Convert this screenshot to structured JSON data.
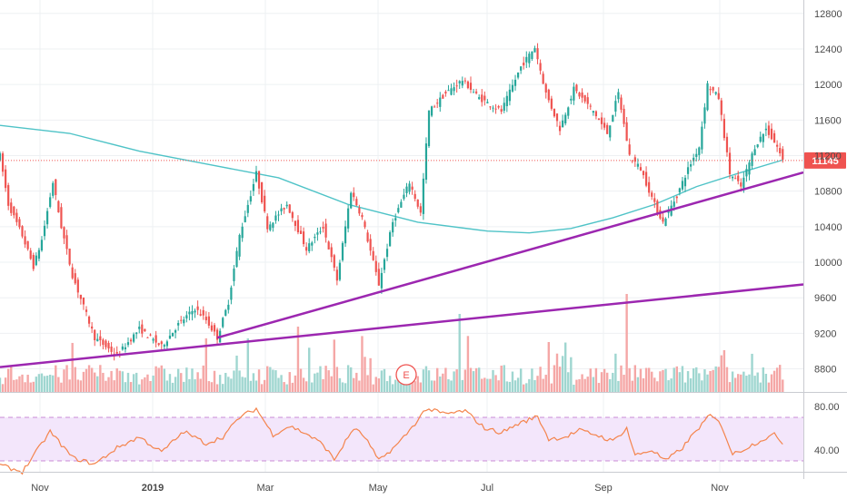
{
  "chart_data": [
    {
      "type": "candlestick",
      "x_ticks": [
        "Nov",
        "2019",
        "Mar",
        "May",
        "Jul",
        "Sep",
        "Nov"
      ],
      "y_ticks": [
        8800,
        9200,
        9600,
        10000,
        10400,
        10800,
        11200,
        11600,
        12000,
        12400,
        12800
      ],
      "ylim": [
        8540,
        12900
      ],
      "last_price": "11145",
      "candle_count": 282,
      "anchors": [
        {
          "i": 0,
          "close": 11200
        },
        {
          "i": 3,
          "close": 10650
        },
        {
          "i": 8,
          "close": 10300
        },
        {
          "i": 12,
          "close": 9950
        },
        {
          "i": 15,
          "close": 10250
        },
        {
          "i": 19,
          "close": 10900
        },
        {
          "i": 22,
          "close": 10400
        },
        {
          "i": 26,
          "close": 9850
        },
        {
          "i": 34,
          "close": 9150
        },
        {
          "i": 42,
          "close": 8950
        },
        {
          "i": 50,
          "close": 9250
        },
        {
          "i": 58,
          "close": 9050
        },
        {
          "i": 64,
          "close": 9300
        },
        {
          "i": 70,
          "close": 9480
        },
        {
          "i": 74,
          "close": 9350
        },
        {
          "i": 78,
          "close": 9150
        },
        {
          "i": 82,
          "close": 9550
        },
        {
          "i": 86,
          "close": 10300
        },
        {
          "i": 92,
          "close": 11000
        },
        {
          "i": 96,
          "close": 10400
        },
        {
          "i": 103,
          "close": 10650
        },
        {
          "i": 110,
          "close": 10150
        },
        {
          "i": 116,
          "close": 10400
        },
        {
          "i": 121,
          "close": 9800
        },
        {
          "i": 126,
          "close": 10800
        },
        {
          "i": 130,
          "close": 10500
        },
        {
          "i": 136,
          "close": 9750
        },
        {
          "i": 141,
          "close": 10450
        },
        {
          "i": 147,
          "close": 10900
        },
        {
          "i": 151,
          "close": 10550
        },
        {
          "i": 154,
          "close": 11700
        },
        {
          "i": 160,
          "close": 11900
        },
        {
          "i": 166,
          "close": 12050
        },
        {
          "i": 172,
          "close": 11850
        },
        {
          "i": 180,
          "close": 11700
        },
        {
          "i": 187,
          "close": 12200
        },
        {
          "i": 192,
          "close": 12420
        },
        {
          "i": 196,
          "close": 11900
        },
        {
          "i": 201,
          "close": 11500
        },
        {
          "i": 206,
          "close": 11950
        },
        {
          "i": 213,
          "close": 11700
        },
        {
          "i": 218,
          "close": 11450
        },
        {
          "i": 222,
          "close": 11900
        },
        {
          "i": 226,
          "close": 11200
        },
        {
          "i": 230,
          "close": 11050
        },
        {
          "i": 235,
          "close": 10650
        },
        {
          "i": 238,
          "close": 10450
        },
        {
          "i": 243,
          "close": 10750
        },
        {
          "i": 247,
          "close": 11050
        },
        {
          "i": 251,
          "close": 11300
        },
        {
          "i": 254,
          "close": 12000
        },
        {
          "i": 258,
          "close": 11850
        },
        {
          "i": 262,
          "close": 11000
        },
        {
          "i": 266,
          "close": 10850
        },
        {
          "i": 271,
          "close": 11300
        },
        {
          "i": 275,
          "close": 11500
        },
        {
          "i": 279,
          "close": 11300
        },
        {
          "i": 281,
          "close": 11145
        }
      ],
      "moving_average": {
        "color": "#4fc3c7",
        "points": [
          [
            0,
            11540
          ],
          [
            25,
            11450
          ],
          [
            50,
            11250
          ],
          [
            75,
            11100
          ],
          [
            100,
            10950
          ],
          [
            125,
            10650
          ],
          [
            150,
            10450
          ],
          [
            175,
            10350
          ],
          [
            190,
            10330
          ],
          [
            205,
            10380
          ],
          [
            220,
            10500
          ],
          [
            235,
            10650
          ],
          [
            250,
            10850
          ],
          [
            265,
            11000
          ],
          [
            281,
            11150
          ]
        ]
      },
      "trendlines": {
        "color": "#9c27b0",
        "lines": [
          [
            [
              0,
              8820
            ],
            [
              281,
              9750
            ]
          ],
          [
            [
              78,
              9150
            ],
            [
              281,
              11010
            ]
          ]
        ]
      },
      "volume": {
        "max_i": 225
      },
      "earnings_marker": "E"
    },
    {
      "type": "line",
      "indicator": "RSI",
      "y_ticks": [
        40.0,
        80.0
      ],
      "ylim": [
        20,
        90
      ],
      "band": [
        30,
        70
      ],
      "color": "#f4844c",
      "anchors": [
        {
          "i": 0,
          "v": 26
        },
        {
          "i": 8,
          "v": 20
        },
        {
          "i": 14,
          "v": 42
        },
        {
          "i": 18,
          "v": 57
        },
        {
          "i": 26,
          "v": 33
        },
        {
          "i": 34,
          "v": 27
        },
        {
          "i": 42,
          "v": 42
        },
        {
          "i": 50,
          "v": 52
        },
        {
          "i": 58,
          "v": 38
        },
        {
          "i": 66,
          "v": 57
        },
        {
          "i": 74,
          "v": 46
        },
        {
          "i": 80,
          "v": 52
        },
        {
          "i": 86,
          "v": 70
        },
        {
          "i": 92,
          "v": 78
        },
        {
          "i": 98,
          "v": 54
        },
        {
          "i": 104,
          "v": 62
        },
        {
          "i": 110,
          "v": 55
        },
        {
          "i": 116,
          "v": 45
        },
        {
          "i": 120,
          "v": 31
        },
        {
          "i": 127,
          "v": 60
        },
        {
          "i": 131,
          "v": 52
        },
        {
          "i": 136,
          "v": 30
        },
        {
          "i": 143,
          "v": 46
        },
        {
          "i": 148,
          "v": 61
        },
        {
          "i": 153,
          "v": 78
        },
        {
          "i": 160,
          "v": 73
        },
        {
          "i": 167,
          "v": 76
        },
        {
          "i": 174,
          "v": 60
        },
        {
          "i": 180,
          "v": 56
        },
        {
          "i": 186,
          "v": 64
        },
        {
          "i": 193,
          "v": 71
        },
        {
          "i": 197,
          "v": 50
        },
        {
          "i": 203,
          "v": 52
        },
        {
          "i": 208,
          "v": 58
        },
        {
          "i": 214,
          "v": 54
        },
        {
          "i": 220,
          "v": 48
        },
        {
          "i": 225,
          "v": 60
        },
        {
          "i": 228,
          "v": 35
        },
        {
          "i": 234,
          "v": 40
        },
        {
          "i": 239,
          "v": 30
        },
        {
          "i": 245,
          "v": 42
        },
        {
          "i": 250,
          "v": 58
        },
        {
          "i": 255,
          "v": 72
        },
        {
          "i": 259,
          "v": 63
        },
        {
          "i": 263,
          "v": 36
        },
        {
          "i": 268,
          "v": 42
        },
        {
          "i": 274,
          "v": 50
        },
        {
          "i": 278,
          "v": 54
        },
        {
          "i": 281,
          "v": 47
        }
      ]
    }
  ],
  "colors": {
    "up": "#26a69a",
    "down": "#ef5350",
    "volume_up": "#9fd6d0",
    "volume_down": "#f5a7a6",
    "rsi_band": "#f3e6fb",
    "rsi_band_border": "#9c27b0",
    "grid": "#eef0f3",
    "price_line": "#ef5350"
  }
}
